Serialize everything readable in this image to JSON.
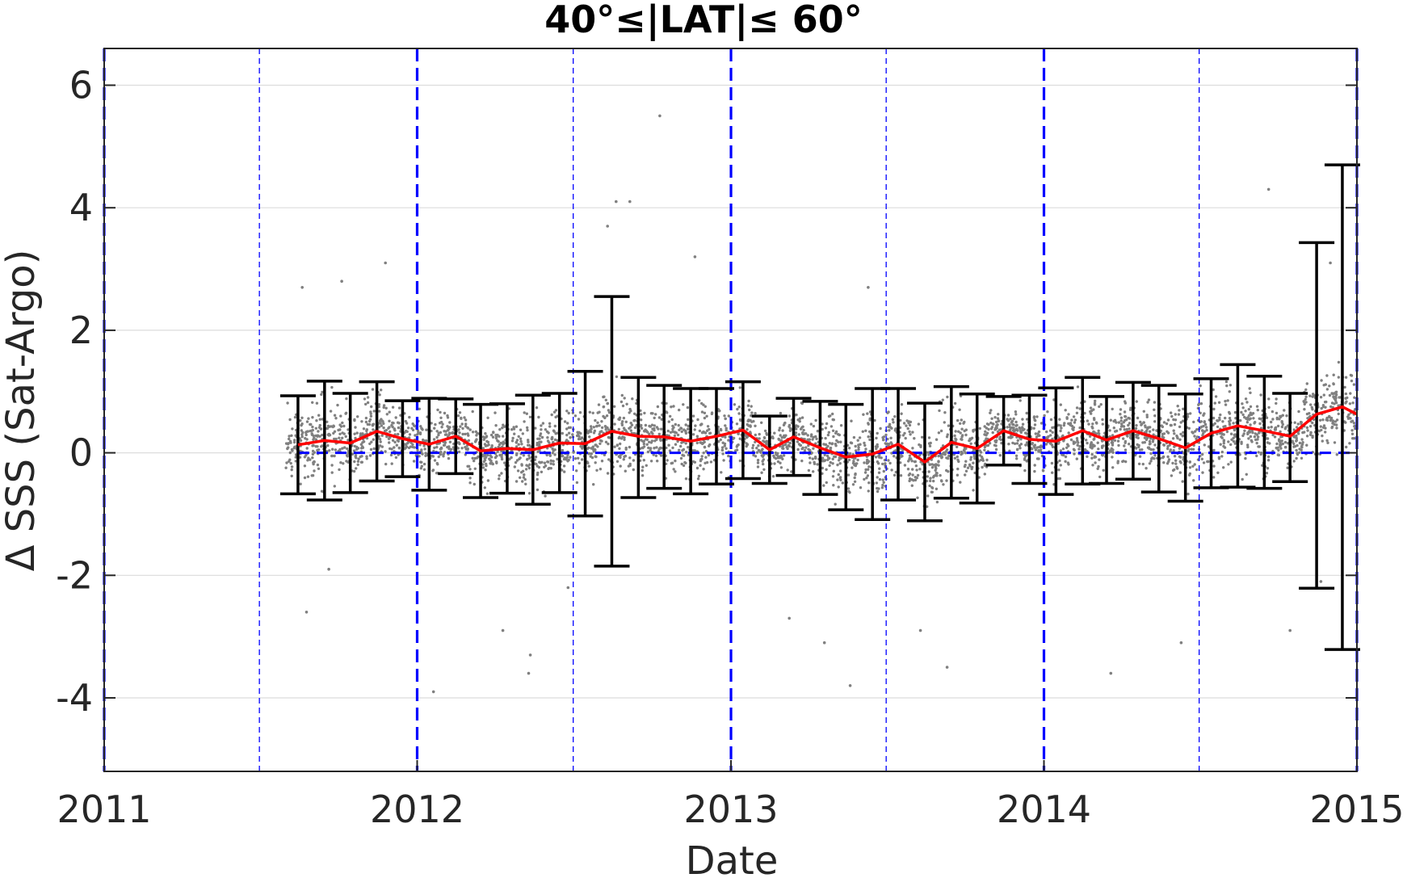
{
  "chart_data": {
    "type": "scatter",
    "title": "40°≤|LAT|≤ 60°",
    "xlabel": "Date",
    "ylabel": "Δ SSS (Sat-Argo)",
    "xlim": [
      "2011-01-01",
      "2015-01-01"
    ],
    "ylim": [
      -5.2,
      6.6
    ],
    "xticks": [
      "2011",
      "2012",
      "2013",
      "2014",
      "2015"
    ],
    "yticks": [
      -4,
      -2,
      0,
      2,
      4,
      6
    ],
    "grid": true,
    "reference_line": {
      "y": 0,
      "style": "dashed",
      "color": "#0000ff"
    },
    "year_lines": [
      "2011-01-01",
      "2012-01-01",
      "2013-01-01",
      "2014-01-01",
      "2015-01-01"
    ],
    "half_year_lines": [
      "2011-07-01",
      "2012-07-01",
      "2013-07-01",
      "2014-07-01"
    ],
    "colors": {
      "scatter": "#808080",
      "mean": "#ff0000",
      "errorbar": "#000000",
      "lines": "#0000ff",
      "grid": "#dcdcdc"
    },
    "series": [
      {
        "kind": "errorbar",
        "dates": [
          "2011-08-15",
          "2011-09-15",
          "2011-10-15",
          "2011-11-15",
          "2011-12-15",
          "2012-01-15",
          "2012-02-15",
          "2012-03-15",
          "2012-04-15",
          "2012-05-15",
          "2012-06-15",
          "2012-07-15",
          "2012-08-15",
          "2012-09-15",
          "2012-10-15",
          "2012-11-15",
          "2012-12-15",
          "2013-01-15",
          "2013-02-15",
          "2013-03-15",
          "2013-04-15",
          "2013-05-15",
          "2013-06-15",
          "2013-07-15",
          "2013-08-15",
          "2013-09-15",
          "2013-10-15",
          "2013-11-15",
          "2013-12-15",
          "2014-01-15",
          "2014-02-15",
          "2014-03-15",
          "2014-04-15",
          "2014-05-15",
          "2014-06-15",
          "2014-07-15",
          "2014-08-15",
          "2014-09-15",
          "2014-10-15",
          "2014-11-15",
          "2014-12-15"
        ],
        "mean": [
          0.13,
          0.2,
          0.16,
          0.35,
          0.23,
          0.14,
          0.27,
          0.03,
          0.07,
          0.05,
          0.16,
          0.15,
          0.35,
          0.27,
          0.26,
          0.19,
          0.27,
          0.37,
          0.05,
          0.26,
          0.08,
          -0.07,
          -0.02,
          0.14,
          -0.15,
          0.17,
          0.07,
          0.36,
          0.22,
          0.19,
          0.36,
          0.21,
          0.36,
          0.23,
          0.08,
          0.32,
          0.44,
          0.36,
          0.27,
          0.63,
          0.75
        ],
        "lower": [
          -0.67,
          -0.77,
          -0.65,
          -0.46,
          -0.39,
          -0.61,
          -0.34,
          -0.73,
          -0.66,
          -0.84,
          -0.65,
          -1.03,
          -1.85,
          -0.73,
          -0.58,
          -0.67,
          -0.51,
          -0.42,
          -0.5,
          -0.37,
          -0.68,
          -0.93,
          -1.09,
          -0.77,
          -1.11,
          -0.74,
          -0.82,
          -0.2,
          -0.5,
          -0.68,
          -0.51,
          -0.5,
          -0.43,
          -0.64,
          -0.79,
          -0.57,
          -0.56,
          -0.58,
          -0.47,
          -2.21,
          -3.21
        ],
        "upper": [
          0.93,
          1.17,
          0.97,
          1.16,
          0.85,
          0.89,
          0.88,
          0.79,
          0.8,
          0.94,
          0.97,
          1.33,
          2.55,
          1.23,
          1.1,
          1.05,
          1.05,
          1.16,
          0.6,
          0.89,
          0.84,
          0.79,
          1.05,
          1.05,
          0.81,
          1.08,
          0.96,
          0.92,
          0.94,
          1.06,
          1.23,
          0.92,
          1.15,
          1.1,
          0.96,
          1.21,
          1.44,
          1.25,
          0.97,
          3.43,
          4.7
        ]
      },
      {
        "kind": "scatter",
        "description_points": "dense grey scatter of individual ΔSSS match-ups between 2011-08 and 2015-01, mostly within ±1.5",
        "density_range": [
          -1.5,
          1.5
        ],
        "outliers": [
          {
            "date": "2011-08-20",
            "y": 2.7
          },
          {
            "date": "2011-08-25",
            "y": -2.6
          },
          {
            "date": "2011-10-05",
            "y": 2.8
          },
          {
            "date": "2011-09-20",
            "y": -1.9
          },
          {
            "date": "2011-11-25",
            "y": 3.1
          },
          {
            "date": "2012-01-20",
            "y": -3.9
          },
          {
            "date": "2012-04-10",
            "y": -2.9
          },
          {
            "date": "2012-05-10",
            "y": -3.6
          },
          {
            "date": "2012-05-12",
            "y": -3.3
          },
          {
            "date": "2012-06-25",
            "y": -2.2
          },
          {
            "date": "2012-08-10",
            "y": 3.7
          },
          {
            "date": "2012-08-20",
            "y": 4.1
          },
          {
            "date": "2012-09-05",
            "y": 4.1
          },
          {
            "date": "2012-10-10",
            "y": 5.5
          },
          {
            "date": "2012-11-20",
            "y": 3.2
          },
          {
            "date": "2013-03-10",
            "y": -2.7
          },
          {
            "date": "2013-05-20",
            "y": -3.8
          },
          {
            "date": "2013-04-20",
            "y": -3.1
          },
          {
            "date": "2013-08-10",
            "y": -2.9
          },
          {
            "date": "2013-09-10",
            "y": -3.5
          },
          {
            "date": "2013-06-10",
            "y": 2.7
          },
          {
            "date": "2014-03-20",
            "y": -3.6
          },
          {
            "date": "2014-06-10",
            "y": -3.1
          },
          {
            "date": "2014-09-20",
            "y": 4.3
          },
          {
            "date": "2014-10-15",
            "y": -2.9
          },
          {
            "date": "2014-11-20",
            "y": -2.1
          },
          {
            "date": "2014-12-01",
            "y": 3.1
          }
        ]
      }
    ]
  }
}
